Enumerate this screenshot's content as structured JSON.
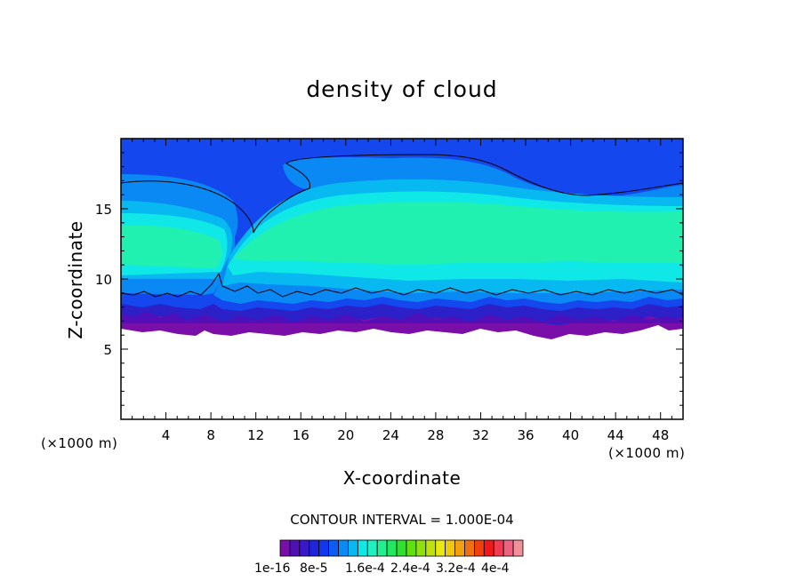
{
  "chart_data": {
    "type": "heatmap",
    "title": "density of cloud",
    "xlabel": "X-coordinate",
    "ylabel": "Z-coordinate",
    "x_unit": "(×1000 m)",
    "z_unit": "(×1000 m)",
    "xlim": [
      0,
      50
    ],
    "ylim": [
      0,
      20
    ],
    "x_ticks": [
      4,
      8,
      12,
      16,
      20,
      24,
      28,
      32,
      36,
      40,
      44,
      48
    ],
    "y_ticks": [
      5,
      10,
      15
    ],
    "contour_interval_text": "CONTOUR INTERVAL = 1.000E-04",
    "colorbar": {
      "colors": [
        "#7a0ea8",
        "#5010b8",
        "#3a18c8",
        "#1e26dc",
        "#1038ee",
        "#0c5cf4",
        "#0a8af4",
        "#08b8f0",
        "#10e8e8",
        "#20f0c0",
        "#20f090",
        "#20e860",
        "#30e030",
        "#60e010",
        "#90e010",
        "#c0e010",
        "#e8e810",
        "#f0c810",
        "#f0a010",
        "#f07010",
        "#f04010",
        "#f01818",
        "#f03c50",
        "#f06080",
        "#f09098"
      ],
      "labels": [
        "1e-16",
        "8e-5",
        "1.6e-4",
        "2.4e-4",
        "3.2e-4",
        "4e-4"
      ]
    },
    "field_colors": {
      "level_1": "#7a0ea8",
      "level_2": "#2c20c8",
      "level_3": "#1448ee",
      "level_4": "#0a88f4",
      "level_5": "#08b8f0",
      "level_6": "#10e8e8",
      "level_7": "#20f0b0"
    }
  }
}
